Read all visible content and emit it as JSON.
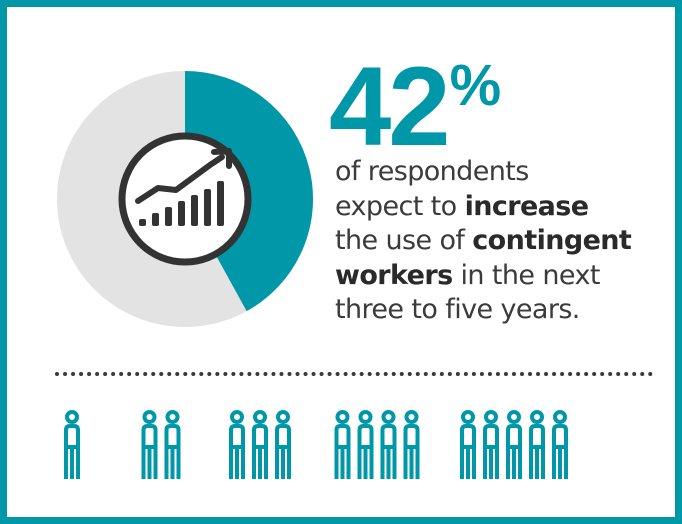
{
  "stat": {
    "number": "42",
    "percent_sign": "%",
    "value_percent": 42
  },
  "caption": {
    "line1": "of respondents",
    "line2_a": "expect to ",
    "line2_b": "increase",
    "line3_a": "the use of ",
    "line3_b": "contingent",
    "line4_a": "workers",
    "line4_b": " in the next",
    "line5": "three to five years."
  },
  "colors": {
    "accent": "#0097a9",
    "donut_rest": "#e3e3e3",
    "icon_dark": "#333333",
    "text": "#3b3b3b"
  },
  "icons": {
    "center": "growth-chart-icon",
    "people": "person-icon"
  },
  "people_groups": [
    1,
    2,
    3,
    4,
    5
  ]
}
